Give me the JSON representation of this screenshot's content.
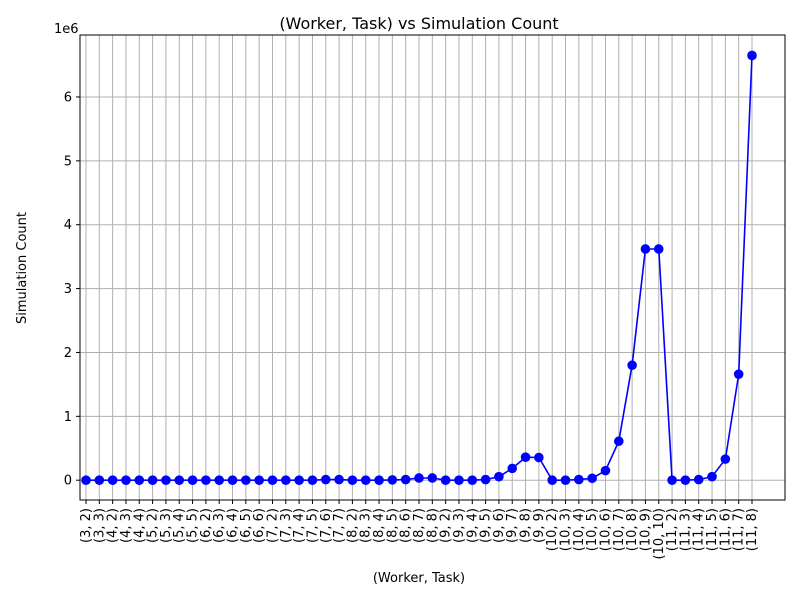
{
  "chart_data": {
    "type": "line",
    "title": "(Worker, Task) vs Simulation Count",
    "xlabel": "(Worker, Task)",
    "ylabel": "Simulation Count",
    "y_multiplier_label": "1e6",
    "ylim": [
      -310000,
      6970000
    ],
    "y_ticks": [
      0,
      1000000,
      2000000,
      3000000,
      4000000,
      5000000,
      6000000
    ],
    "y_tick_labels": [
      "0",
      "1",
      "2",
      "3",
      "4",
      "5",
      "6"
    ],
    "grid": true,
    "categories": [
      "(3, 2)",
      "(3, 3)",
      "(4, 2)",
      "(4, 3)",
      "(4, 4)",
      "(5, 2)",
      "(5, 3)",
      "(5, 4)",
      "(5, 5)",
      "(6, 2)",
      "(6, 3)",
      "(6, 4)",
      "(6, 5)",
      "(6, 6)",
      "(7, 2)",
      "(7, 3)",
      "(7, 4)",
      "(7, 5)",
      "(7, 6)",
      "(7, 7)",
      "(8, 2)",
      "(8, 3)",
      "(8, 4)",
      "(8, 5)",
      "(8, 6)",
      "(8, 7)",
      "(8, 8)",
      "(9, 2)",
      "(9, 3)",
      "(9, 4)",
      "(9, 5)",
      "(9, 6)",
      "(9, 7)",
      "(9, 8)",
      "(9, 9)",
      "(10, 2)",
      "(10, 3)",
      "(10, 4)",
      "(10, 5)",
      "(10, 6)",
      "(10, 7)",
      "(10, 8)",
      "(10, 9)",
      "(10, 10)",
      "(11, 2)",
      "(11, 3)",
      "(11, 4)",
      "(11, 5)",
      "(11, 6)",
      "(11, 7)",
      "(11, 8)"
    ],
    "series": [
      {
        "color": "#0000ff",
        "marker": "circle",
        "values": [
          0,
          0,
          0,
          0,
          0,
          0,
          0,
          0,
          0,
          0,
          0,
          0,
          0,
          0,
          0,
          0,
          0,
          0,
          10000,
          10000,
          0,
          0,
          0,
          5000,
          10000,
          35000,
          35000,
          0,
          0,
          0,
          10000,
          55000,
          185000,
          360000,
          355000,
          0,
          0,
          10000,
          30000,
          150000,
          610000,
          1800000,
          3620000,
          3620000,
          0,
          0,
          10000,
          55000,
          330000,
          1660000,
          6650000
        ]
      }
    ]
  }
}
